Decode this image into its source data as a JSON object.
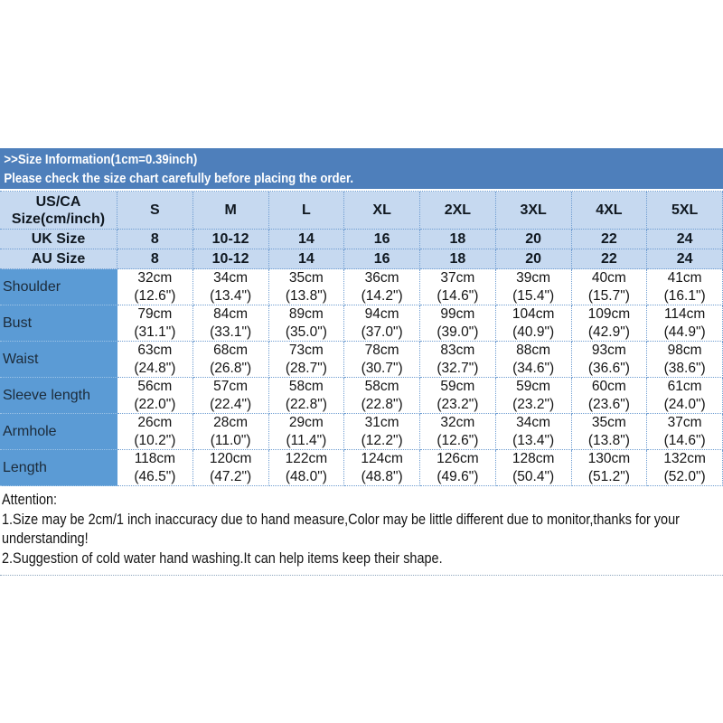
{
  "colors": {
    "banner_blue": "#4e7fbb",
    "header_light_blue": "#c6d9f0",
    "label_column_blue": "#5b9bd5",
    "grid_line_blue": "#6f9dd1",
    "divider_line": "#8fa8c0"
  },
  "banner": {
    "title": ">>Size Information(1cm=0.39inch)",
    "subtitle": "Please check the size chart carefully before placing the order."
  },
  "table": {
    "corner_label_line1": "US/CA",
    "corner_label_line2": "Size(cm/inch)",
    "sizes": [
      "S",
      "M",
      "L",
      "XL",
      "2XL",
      "3XL",
      "4XL",
      "5XL"
    ],
    "uk_label": "UK Size",
    "uk_values": [
      "8",
      "10-12",
      "14",
      "16",
      "18",
      "20",
      "22",
      "24"
    ],
    "au_label": "AU Size",
    "au_values": [
      "8",
      "10-12",
      "14",
      "16",
      "18",
      "20",
      "22",
      "24"
    ],
    "measurements": [
      {
        "label": "Shoulder",
        "cm": [
          "32cm",
          "34cm",
          "35cm",
          "36cm",
          "37cm",
          "39cm",
          "40cm",
          "41cm"
        ],
        "inch": [
          "(12.6\")",
          "(13.4\")",
          "(13.8\")",
          "(14.2\")",
          "(14.6\")",
          "(15.4\")",
          "(15.7\")",
          "(16.1\")"
        ]
      },
      {
        "label": "Bust",
        "cm": [
          "79cm",
          "84cm",
          "89cm",
          "94cm",
          "99cm",
          "104cm",
          "109cm",
          "114cm"
        ],
        "inch": [
          "(31.1\")",
          "(33.1\")",
          "(35.0\")",
          "(37.0\")",
          "(39.0\")",
          "(40.9\")",
          "(42.9\")",
          "(44.9\")"
        ]
      },
      {
        "label": "Waist",
        "cm": [
          "63cm",
          "68cm",
          "73cm",
          "78cm",
          "83cm",
          "88cm",
          "93cm",
          "98cm"
        ],
        "inch": [
          "(24.8\")",
          "(26.8\")",
          "(28.7\")",
          "(30.7\")",
          "(32.7\")",
          "(34.6\")",
          "(36.6\")",
          "(38.6\")"
        ]
      },
      {
        "label": "Sleeve length",
        "cm": [
          "56cm",
          "57cm",
          "58cm",
          "58cm",
          "59cm",
          "59cm",
          "60cm",
          "61cm"
        ],
        "inch": [
          "(22.0\")",
          "(22.4\")",
          "(22.8\")",
          "(22.8\")",
          "(23.2\")",
          "(23.2\")",
          "(23.6\")",
          "(24.0\")"
        ]
      },
      {
        "label": "Armhole",
        "cm": [
          "26cm",
          "28cm",
          "29cm",
          "31cm",
          "32cm",
          "34cm",
          "35cm",
          "37cm"
        ],
        "inch": [
          "(10.2\")",
          "(11.0\")",
          "(11.4\")",
          "(12.2\")",
          "(12.6\")",
          "(13.4\")",
          "(13.8\")",
          "(14.6\")"
        ]
      },
      {
        "label": "Length",
        "cm": [
          "118cm",
          "120cm",
          "122cm",
          "124cm",
          "126cm",
          "128cm",
          "130cm",
          "132cm"
        ],
        "inch": [
          "(46.5\")",
          "(47.2\")",
          "(48.0\")",
          "(48.8\")",
          "(49.6\")",
          "(50.4\")",
          "(51.2\")",
          "(52.0\")"
        ]
      }
    ]
  },
  "attention": {
    "lines": [
      "Attention:",
      "1.Size may be 2cm/1 inch inaccuracy due to hand measure,Color may be little different due to monitor,thanks for your",
      "understanding!",
      "2.Suggestion of cold water hand washing.It can help items keep their shape."
    ]
  }
}
